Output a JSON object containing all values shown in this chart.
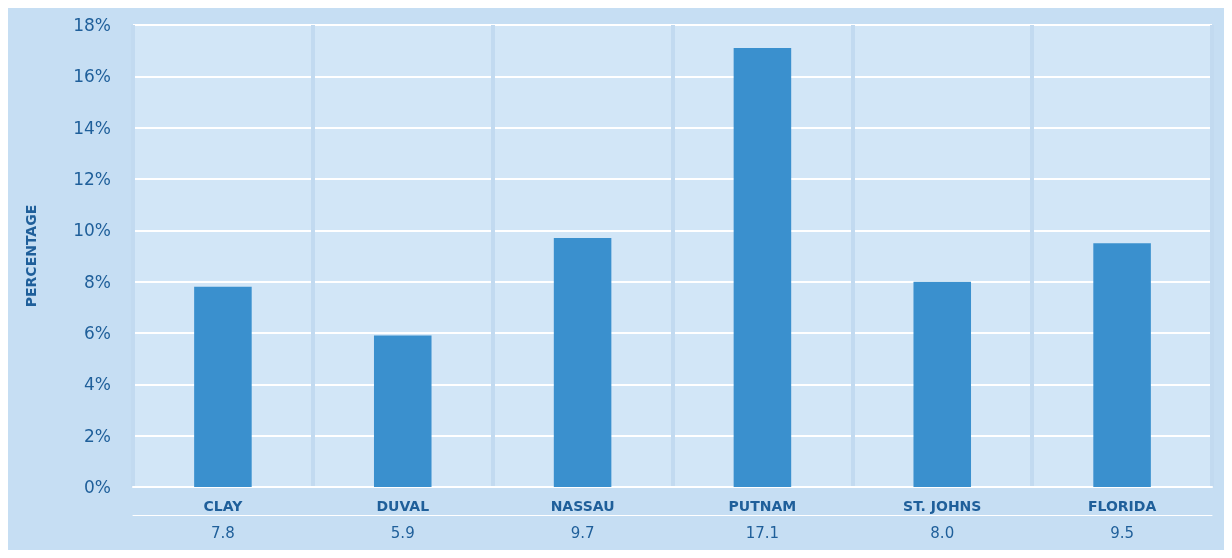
{
  "chart_data": {
    "type": "bar",
    "ylabel": "PERCENTAGE",
    "categories": [
      "CLAY",
      "DUVAL",
      "NASSAU",
      "PUTNAM",
      "ST. JOHNS",
      "FLORIDA"
    ],
    "values": [
      7.8,
      5.9,
      9.7,
      17.1,
      8.0,
      9.5
    ],
    "value_labels": [
      "7.8",
      "5.9",
      "9.7",
      "17.1",
      "8.0",
      "9.5"
    ],
    "color": "#3a90ce",
    "ylim": [
      0,
      18
    ],
    "yticks": [
      {
        "value": 0,
        "label": "0%"
      },
      {
        "value": 2,
        "label": "2%"
      },
      {
        "value": 4,
        "label": "4%"
      },
      {
        "value": 6,
        "label": "6%"
      },
      {
        "value": 8,
        "label": "8%"
      },
      {
        "value": 10,
        "label": "10%"
      },
      {
        "value": 12,
        "label": "12%"
      },
      {
        "value": 14,
        "label": "14%"
      },
      {
        "value": 16,
        "label": "16%"
      },
      {
        "value": 18,
        "label": "18%"
      }
    ],
    "grid": true
  }
}
